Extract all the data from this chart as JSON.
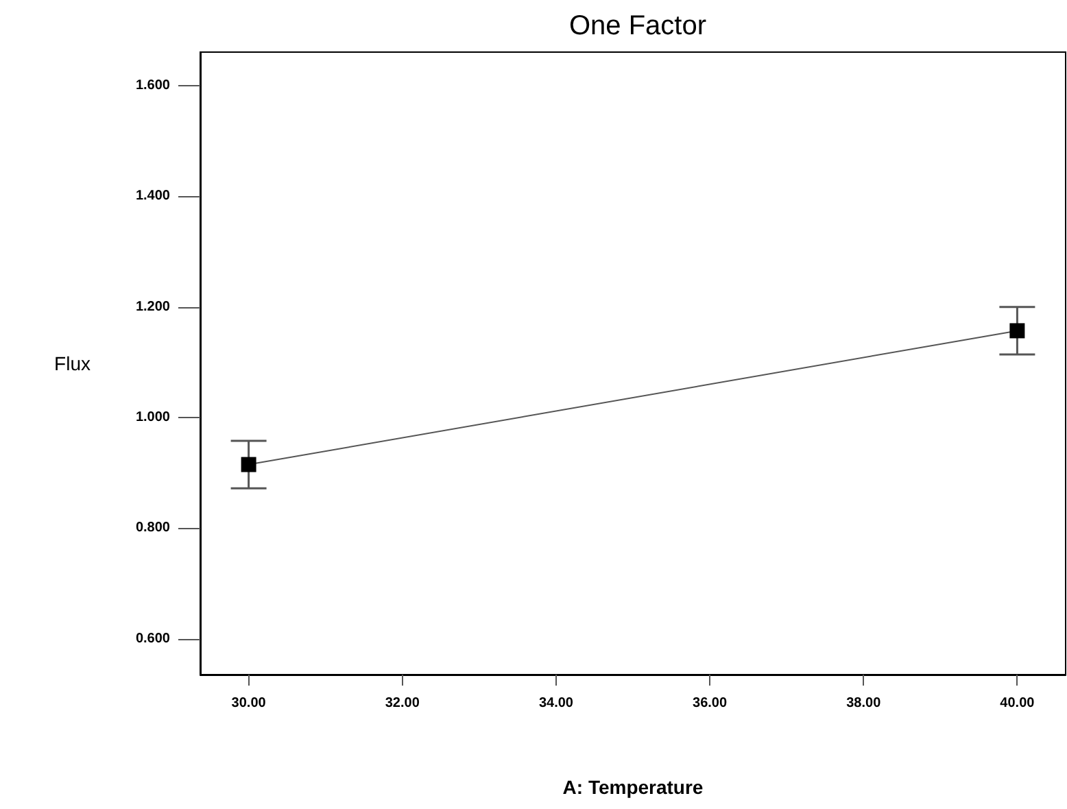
{
  "chart_data": {
    "type": "line",
    "title": "One Factor",
    "xlabel": "A: Temperature",
    "ylabel": "Flux",
    "x": [
      30,
      40
    ],
    "series": [
      {
        "color": "#000000",
        "values": [
          0.915,
          1.157
        ],
        "errors": [
          0.043,
          0.043
        ]
      }
    ],
    "xlim": [
      29.37,
      40.63
    ],
    "ylim": [
      0.535,
      1.661
    ],
    "xticks": [
      {
        "value": 30,
        "label": "30.00"
      },
      {
        "value": 32,
        "label": "32.00"
      },
      {
        "value": 34,
        "label": "34.00"
      },
      {
        "value": 36,
        "label": "36.00"
      },
      {
        "value": 38,
        "label": "38.00"
      },
      {
        "value": 40,
        "label": "40.00"
      }
    ],
    "yticks": [
      {
        "value": 0.6,
        "label": "0.600"
      },
      {
        "value": 0.8,
        "label": "0.800"
      },
      {
        "value": 1.0,
        "label": "1.000"
      },
      {
        "value": 1.2,
        "label": "1.200"
      },
      {
        "value": 1.4,
        "label": "1.400"
      },
      {
        "value": 1.6,
        "label": "1.600"
      }
    ],
    "marker": "square",
    "grid": false
  }
}
